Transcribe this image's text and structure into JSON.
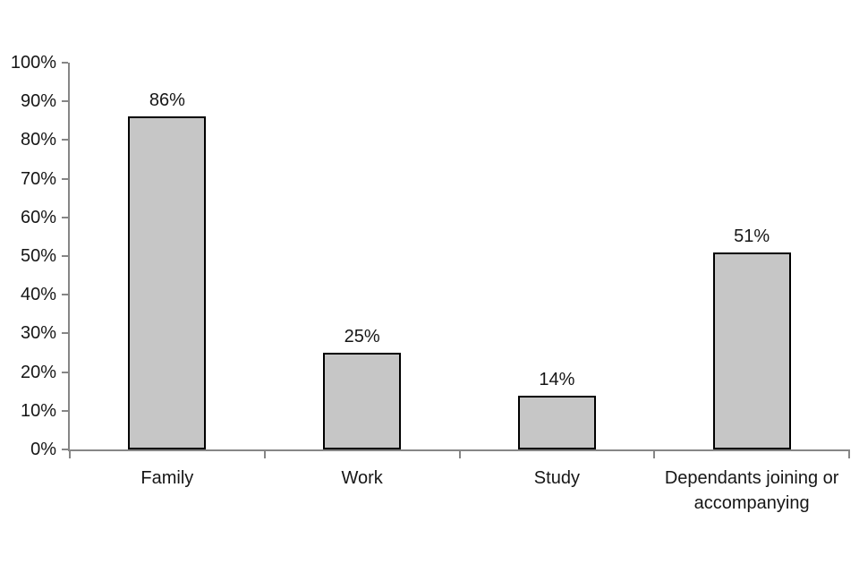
{
  "chart_data": {
    "type": "bar",
    "title": "",
    "categories": [
      "Family",
      "Work",
      "Study",
      "Dependants joining or accompanying"
    ],
    "values": [
      86,
      25,
      14,
      51
    ],
    "bar_labels": [
      "86%",
      "25%",
      "14%",
      "51%"
    ],
    "y_tick_labels": [
      "0%",
      "10%",
      "20%",
      "30%",
      "40%",
      "50%",
      "60%",
      "70%",
      "80%",
      "90%",
      "100%"
    ],
    "ylim": [
      0,
      100
    ],
    "xlabel": "",
    "ylabel": "",
    "grid": false,
    "legend": false,
    "colors": {
      "bar_fill": "#c6c6c6",
      "bar_border": "#000000",
      "axis": "#868686",
      "text": "#161616"
    }
  }
}
